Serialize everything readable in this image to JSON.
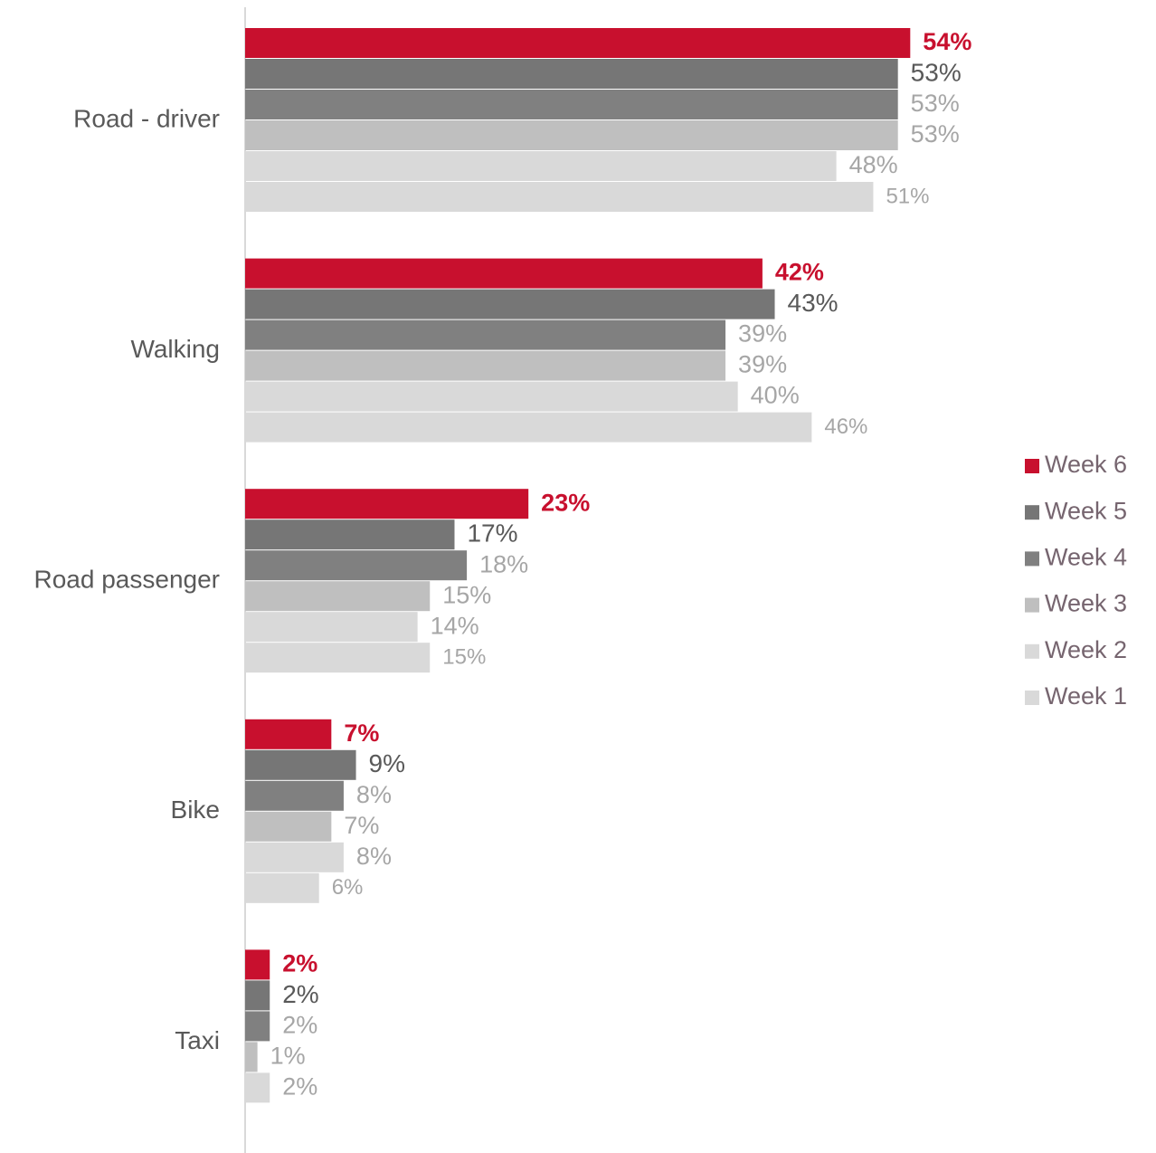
{
  "chart_data": {
    "type": "hbar",
    "categories": [
      "Road - driver",
      "Walking",
      "Road passenger",
      "Bike",
      "Taxi"
    ],
    "series": [
      {
        "name": "Week 6",
        "color": "#c8102e",
        "values": [
          54,
          42,
          23,
          7,
          2
        ],
        "value_labels": [
          "54%",
          "42%",
          "23%",
          "7%",
          "2%"
        ]
      },
      {
        "name": "Week 5",
        "color": "#767676",
        "values": [
          53,
          43,
          17,
          9,
          2
        ],
        "value_labels": [
          "53%",
          "43%",
          "17%",
          "9%",
          "2%"
        ]
      },
      {
        "name": "Week 4",
        "color": "#808080",
        "values": [
          53,
          39,
          18,
          8,
          2
        ],
        "value_labels": [
          "53%",
          "39%",
          "18%",
          "8%",
          "2%"
        ]
      },
      {
        "name": "Week 3",
        "color": "#bfbfbf",
        "values": [
          53,
          39,
          15,
          7,
          1
        ],
        "value_labels": [
          "53%",
          "39%",
          "15%",
          "7%",
          "1%"
        ]
      },
      {
        "name": "Week 2",
        "color": "#d9d9d9",
        "values": [
          48,
          40,
          14,
          8,
          2
        ],
        "value_labels": [
          "48%",
          "40%",
          "14%",
          "8%",
          "2%"
        ]
      },
      {
        "name": "Week 1",
        "color": "#d9d9d9",
        "values": [
          51,
          46,
          15,
          6,
          null
        ],
        "value_labels": [
          "51%",
          "46%",
          "15%",
          "6%",
          null
        ]
      }
    ],
    "xlim": [
      0,
      60
    ],
    "legend": "right"
  }
}
